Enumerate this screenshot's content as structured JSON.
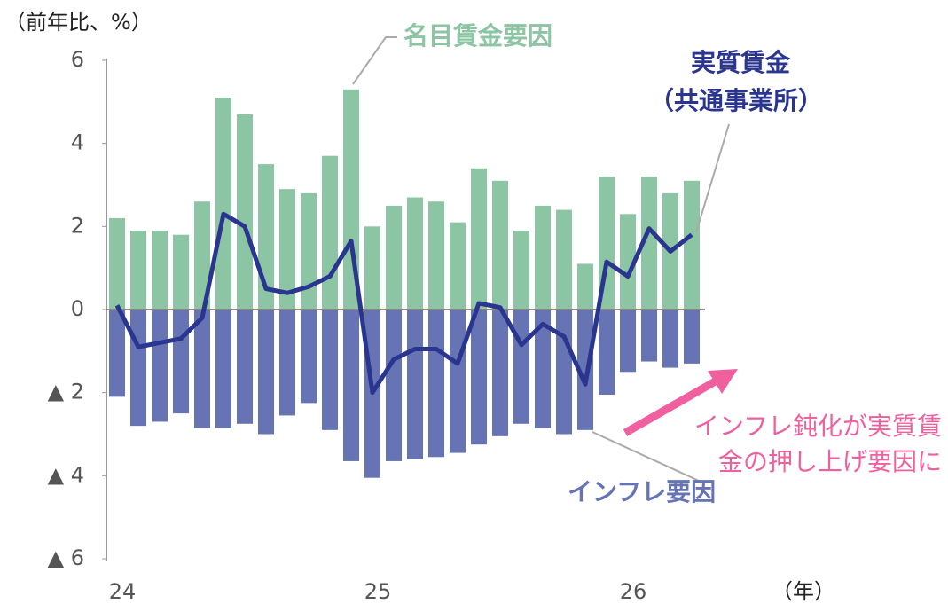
{
  "chart_data": {
    "type": "bar_line",
    "y_unit_label": "（前年比、%）",
    "x_unit_label": "（年）",
    "categories": [
      "24",
      null,
      null,
      null,
      null,
      null,
      null,
      null,
      null,
      null,
      null,
      null,
      "25",
      null,
      null,
      null,
      null,
      null,
      null,
      null,
      null,
      null,
      null,
      null,
      "26",
      null,
      null,
      null
    ],
    "ylim": [
      -6,
      6
    ],
    "yticks": [
      6,
      4,
      2,
      0,
      {
        "value": -2,
        "label": "▲ 2"
      },
      {
        "value": -4,
        "label": "▲ 4"
      },
      {
        "value": -6,
        "label": "▲ 6"
      }
    ],
    "series": [
      {
        "name": "名目賃金要因",
        "type": "bar",
        "color": "#8cc5a3",
        "values": [
          2.2,
          1.9,
          1.9,
          1.8,
          2.6,
          5.1,
          4.7,
          3.5,
          2.9,
          2.8,
          3.7,
          5.3,
          2.0,
          2.5,
          2.7,
          2.6,
          2.1,
          3.4,
          3.1,
          1.9,
          2.5,
          2.4,
          1.1,
          3.2,
          2.3,
          3.2,
          2.8,
          3.1
        ]
      },
      {
        "name": "インフレ要因",
        "type": "bar",
        "color": "#6674b4",
        "values": [
          -2.1,
          -2.8,
          -2.7,
          -2.5,
          -2.85,
          -2.85,
          -2.75,
          -3.0,
          -2.55,
          -2.25,
          -2.9,
          -3.65,
          -4.05,
          -3.65,
          -3.6,
          -3.55,
          -3.45,
          -3.25,
          -3.05,
          -2.75,
          -2.85,
          -3.0,
          -2.9,
          -2.05,
          -1.5,
          -1.25,
          -1.4,
          -1.3
        ]
      },
      {
        "name": "実質賃金",
        "name_line2": "（共通事業所）",
        "type": "line",
        "color": "#2a3590",
        "values": [
          0.1,
          -0.9,
          -0.8,
          -0.7,
          -0.2,
          2.3,
          2.0,
          0.5,
          0.4,
          0.55,
          0.8,
          1.65,
          -2.0,
          -1.2,
          -0.95,
          -0.95,
          -1.3,
          0.15,
          0.05,
          -0.85,
          -0.35,
          -0.65,
          -1.8,
          1.15,
          0.8,
          1.95,
          1.4,
          1.8
        ]
      }
    ],
    "annotation": {
      "lines": [
        "インフレ鈍化が実質賃",
        "金の押し上げ要因に"
      ],
      "color": "#f0609e"
    }
  }
}
